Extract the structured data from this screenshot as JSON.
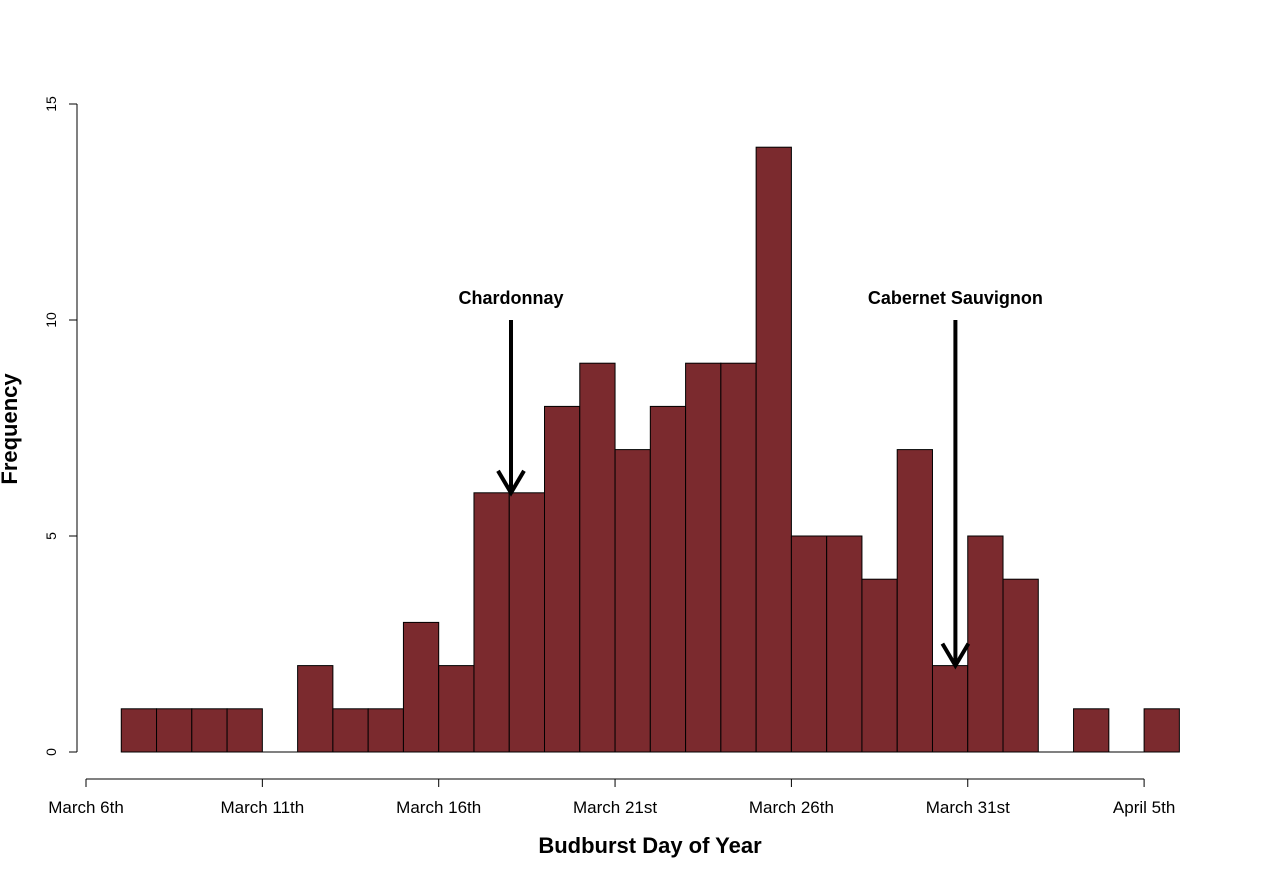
{
  "chart_data": {
    "type": "bar",
    "title": "",
    "xlabel": "Budburst Day of Year",
    "ylabel": "Frequency",
    "ylim": [
      0,
      15
    ],
    "yticks": [
      "0",
      "5",
      "10",
      "15"
    ],
    "xticks": [
      {
        "day": 0,
        "label": "March 6th"
      },
      {
        "day": 5,
        "label": "March 11th"
      },
      {
        "day": 10,
        "label": "March 16th"
      },
      {
        "day": 15,
        "label": "March 21st"
      },
      {
        "day": 20,
        "label": "March 26th"
      },
      {
        "day": 25,
        "label": "March 31st"
      },
      {
        "day": 30,
        "label": "April 5th"
      }
    ],
    "bins": [
      {
        "start": 1,
        "end": 2,
        "count": 1
      },
      {
        "start": 2,
        "end": 3,
        "count": 1
      },
      {
        "start": 3,
        "end": 4,
        "count": 1
      },
      {
        "start": 4,
        "end": 5,
        "count": 1
      },
      {
        "start": 5,
        "end": 6,
        "count": 0
      },
      {
        "start": 6,
        "end": 7,
        "count": 2
      },
      {
        "start": 7,
        "end": 8,
        "count": 1
      },
      {
        "start": 8,
        "end": 9,
        "count": 1
      },
      {
        "start": 9,
        "end": 10,
        "count": 3
      },
      {
        "start": 10,
        "end": 11,
        "count": 2
      },
      {
        "start": 11,
        "end": 12,
        "count": 6
      },
      {
        "start": 12,
        "end": 13,
        "count": 6
      },
      {
        "start": 13,
        "end": 14,
        "count": 8
      },
      {
        "start": 14,
        "end": 15,
        "count": 9
      },
      {
        "start": 15,
        "end": 16,
        "count": 7
      },
      {
        "start": 16,
        "end": 17,
        "count": 8
      },
      {
        "start": 17,
        "end": 18,
        "count": 9
      },
      {
        "start": 18,
        "end": 19,
        "count": 9
      },
      {
        "start": 19,
        "end": 20,
        "count": 14
      },
      {
        "start": 20,
        "end": 21,
        "count": 5
      },
      {
        "start": 21,
        "end": 22,
        "count": 5
      },
      {
        "start": 22,
        "end": 23,
        "count": 4
      },
      {
        "start": 23,
        "end": 24,
        "count": 7
      },
      {
        "start": 24,
        "end": 25,
        "count": 2
      },
      {
        "start": 25,
        "end": 26,
        "count": 5
      },
      {
        "start": 26,
        "end": 27,
        "count": 4
      },
      {
        "start": 27,
        "end": 28,
        "count": 0
      },
      {
        "start": 28,
        "end": 29,
        "count": 1
      },
      {
        "start": 29,
        "end": 30,
        "count": 0
      },
      {
        "start": 30,
        "end": 31,
        "count": 1
      }
    ],
    "annotations": [
      {
        "label": "Chardonnay",
        "day": 12.05,
        "from_y": 10,
        "to_y": 6
      },
      {
        "label": "Cabernet Sauvignon",
        "day": 24.65,
        "from_y": 10,
        "to_y": 2
      }
    ],
    "bar_color": "#7b2a2e",
    "bar_edge_color": "#000000",
    "grid": false,
    "legend": "none"
  }
}
